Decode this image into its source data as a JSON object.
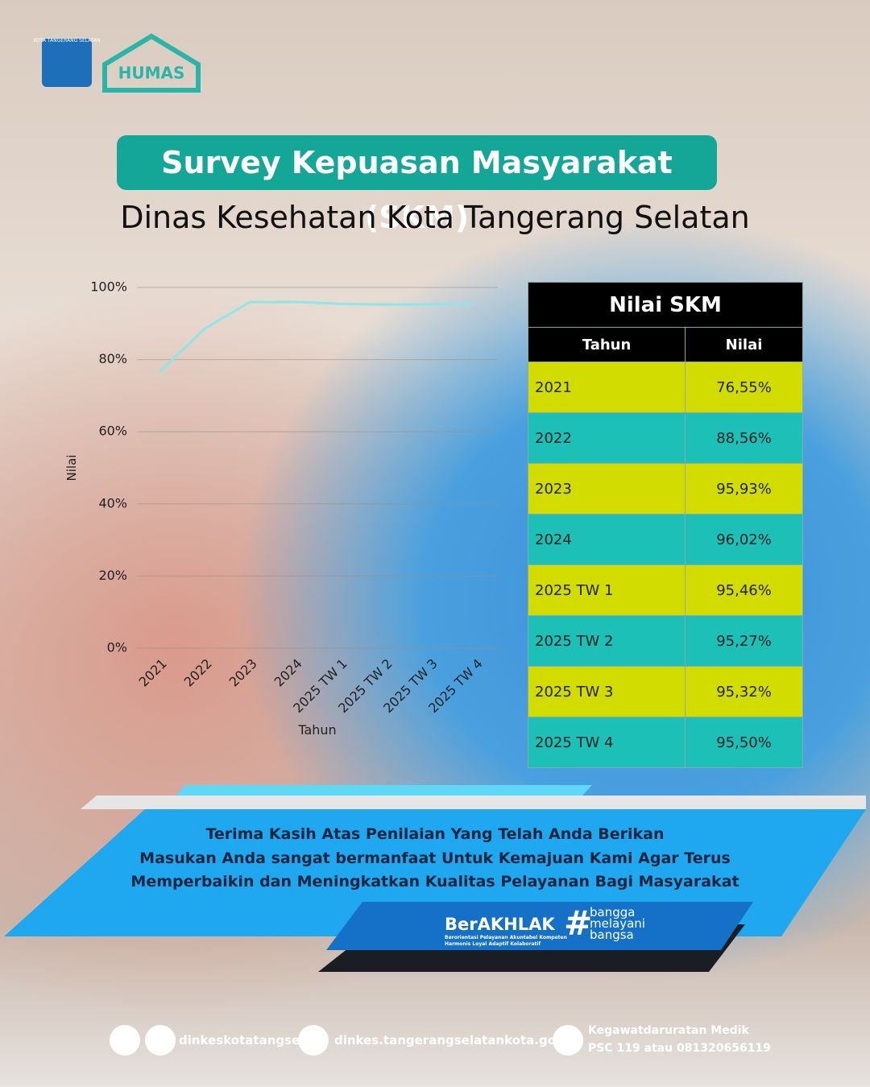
{
  "header": {
    "logo_city": "KOTA TANGERANG SELATAN",
    "logo_humas": "HUMAS",
    "title": "Survey Kepuasan Masyarakat (SKM)",
    "subtitle": "Dinas Kesehatan Kota Tangerang Selatan"
  },
  "chart_data": {
    "type": "line",
    "categories": [
      "2021",
      "2022",
      "2023",
      "2024",
      "2025 TW 1",
      "2025 TW 2",
      "2025 TW 3",
      "2025 TW 4"
    ],
    "values": [
      76.55,
      88.56,
      95.93,
      96.02,
      95.46,
      95.27,
      95.32,
      95.5
    ],
    "color": "#8ee6ea",
    "xlabel": "Tahun",
    "ylabel": "Nilai",
    "ylim": [
      0,
      100
    ],
    "yticks": [
      {
        "value": 0,
        "label": "0%"
      },
      {
        "value": 20,
        "label": "20%"
      },
      {
        "value": 40,
        "label": "40%"
      },
      {
        "value": 60,
        "label": "60%"
      },
      {
        "value": 80,
        "label": "80%"
      },
      {
        "value": 100,
        "label": "100%"
      }
    ],
    "grid": true
  },
  "table": {
    "title": "Nilai SKM",
    "columns": [
      "Tahun",
      "Nilai"
    ],
    "rows": [
      [
        "2021",
        "76,55%"
      ],
      [
        "2022",
        "88,56%"
      ],
      [
        "2023",
        "95,93%"
      ],
      [
        "2024",
        "96,02%"
      ],
      [
        "2025 TW 1",
        "95,46%"
      ],
      [
        "2025 TW 2",
        "95,27%"
      ],
      [
        "2025 TW 3",
        "95,32%"
      ],
      [
        "2025 TW 4",
        "95,50%"
      ]
    ]
  },
  "message": {
    "lines": [
      "Terima Kasih Atas Penilaian Yang Telah Anda Berikan",
      "Masukan Anda sangat bermanfaat Untuk Kemajuan Kami Agar Terus",
      "Memperbaikin dan Meningkatkan Kualitas Pelayanan Bagi Masyarakat"
    ]
  },
  "brand": {
    "name": "BerAKHLAK",
    "tagline_1": "Berorientasi Pelayanan Akuntabel Kompeten",
    "tagline_2": "Harmonis Loyal Adaptif Kolaboratif",
    "slogan": [
      "bangga",
      "melayani",
      "bangsa"
    ]
  },
  "footer": {
    "social": "dinkeskotatangsel",
    "website": "dinkes.tangerangselatankota.go.id",
    "emergency_title": "Kegawatdaruratan Medik",
    "emergency_numbers": "PSC 119 atau 081320656119"
  }
}
